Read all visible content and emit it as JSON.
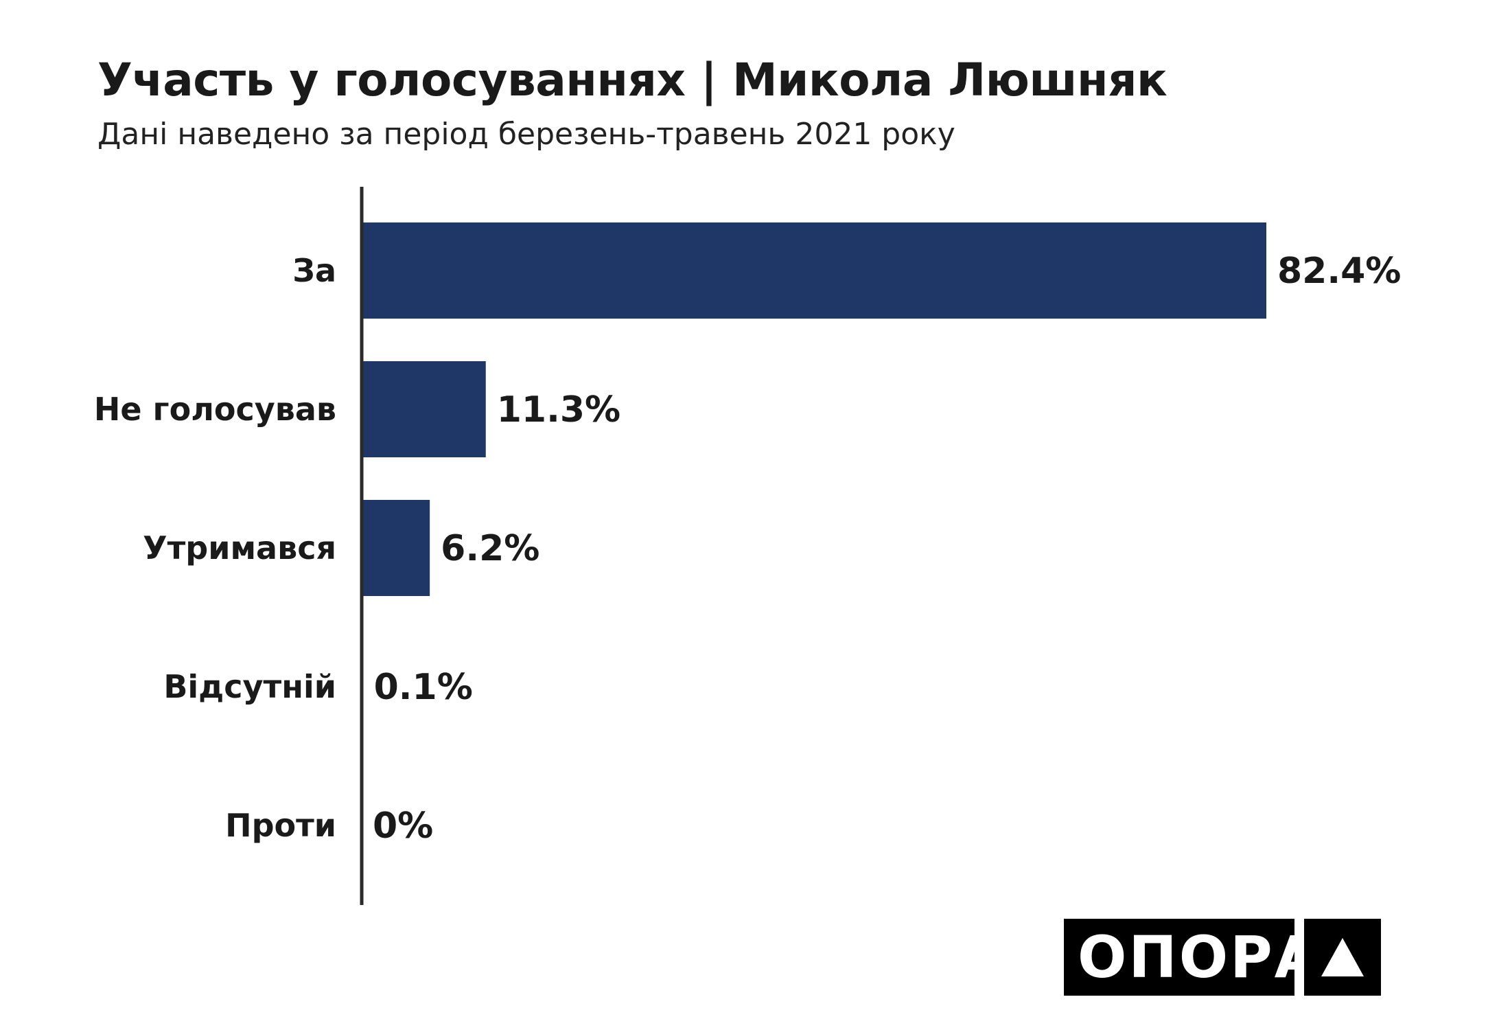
{
  "title": "Участь у голосуваннях | Микола Люшняк",
  "subtitle": "Дані наведено за період березень-травень 2021 року",
  "logo": {
    "text": "ОПОРА",
    "mark_icon": "triangle-up-icon"
  },
  "colors": {
    "bar": "#1f3766",
    "axis": "#2a2a2a",
    "text": "#1a1a1a"
  },
  "chart_data": {
    "type": "bar",
    "orientation": "horizontal",
    "categories": [
      "За",
      "Не голосував",
      "Утримався",
      "Відсутній",
      "Проти"
    ],
    "values": [
      82.4,
      11.3,
      6.2,
      0.1,
      0
    ],
    "value_labels": [
      "82.4%",
      "11.3%",
      "6.2%",
      "0.1%",
      "0%"
    ],
    "title": "Участь у голосуваннях | Микола Люшняк",
    "subtitle": "Дані наведено за період березень-травень 2021 року",
    "xlim": [
      0,
      100
    ],
    "grid": false,
    "legend": "none"
  }
}
